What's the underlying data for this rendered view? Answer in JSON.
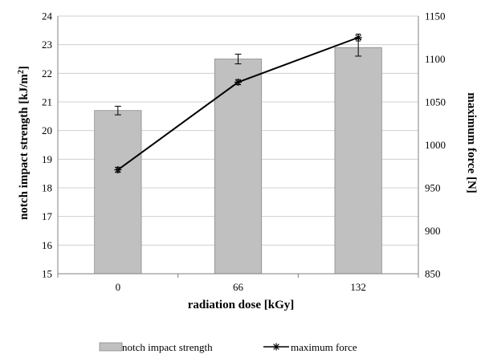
{
  "chart_data": {
    "type": "bar",
    "xlabel": "radiation dose [kGy]",
    "ylabel": "notch impact strength [kJ/m²]",
    "ylabel_parts": {
      "main": "notch impact strength [kJ/m",
      "sup": "2",
      "end": "]"
    },
    "y2label": "maximum force [N]",
    "categories": [
      "0",
      "66",
      "132"
    ],
    "ylim": [
      15,
      24
    ],
    "yticks": [
      "15",
      "16",
      "17",
      "18",
      "19",
      "20",
      "21",
      "22",
      "23",
      "24"
    ],
    "y2lim": [
      850,
      1150
    ],
    "y2ticks": [
      "850",
      "900",
      "950",
      "1000",
      "1050",
      "1100",
      "1150"
    ],
    "grid": true,
    "legend_position": "bottom",
    "series": [
      {
        "name": "notch impact strength",
        "type": "bar",
        "axis": "left",
        "values": [
          20.7,
          22.5,
          22.9
        ],
        "errors": [
          0.15,
          0.17,
          0.3
        ],
        "color": "#c0c0c0"
      },
      {
        "name": "maximum force",
        "type": "line",
        "axis": "right",
        "marker": "star",
        "values": [
          971,
          1073,
          1125
        ],
        "errors": [
          3,
          3,
          4
        ],
        "color": "#000000"
      }
    ]
  }
}
